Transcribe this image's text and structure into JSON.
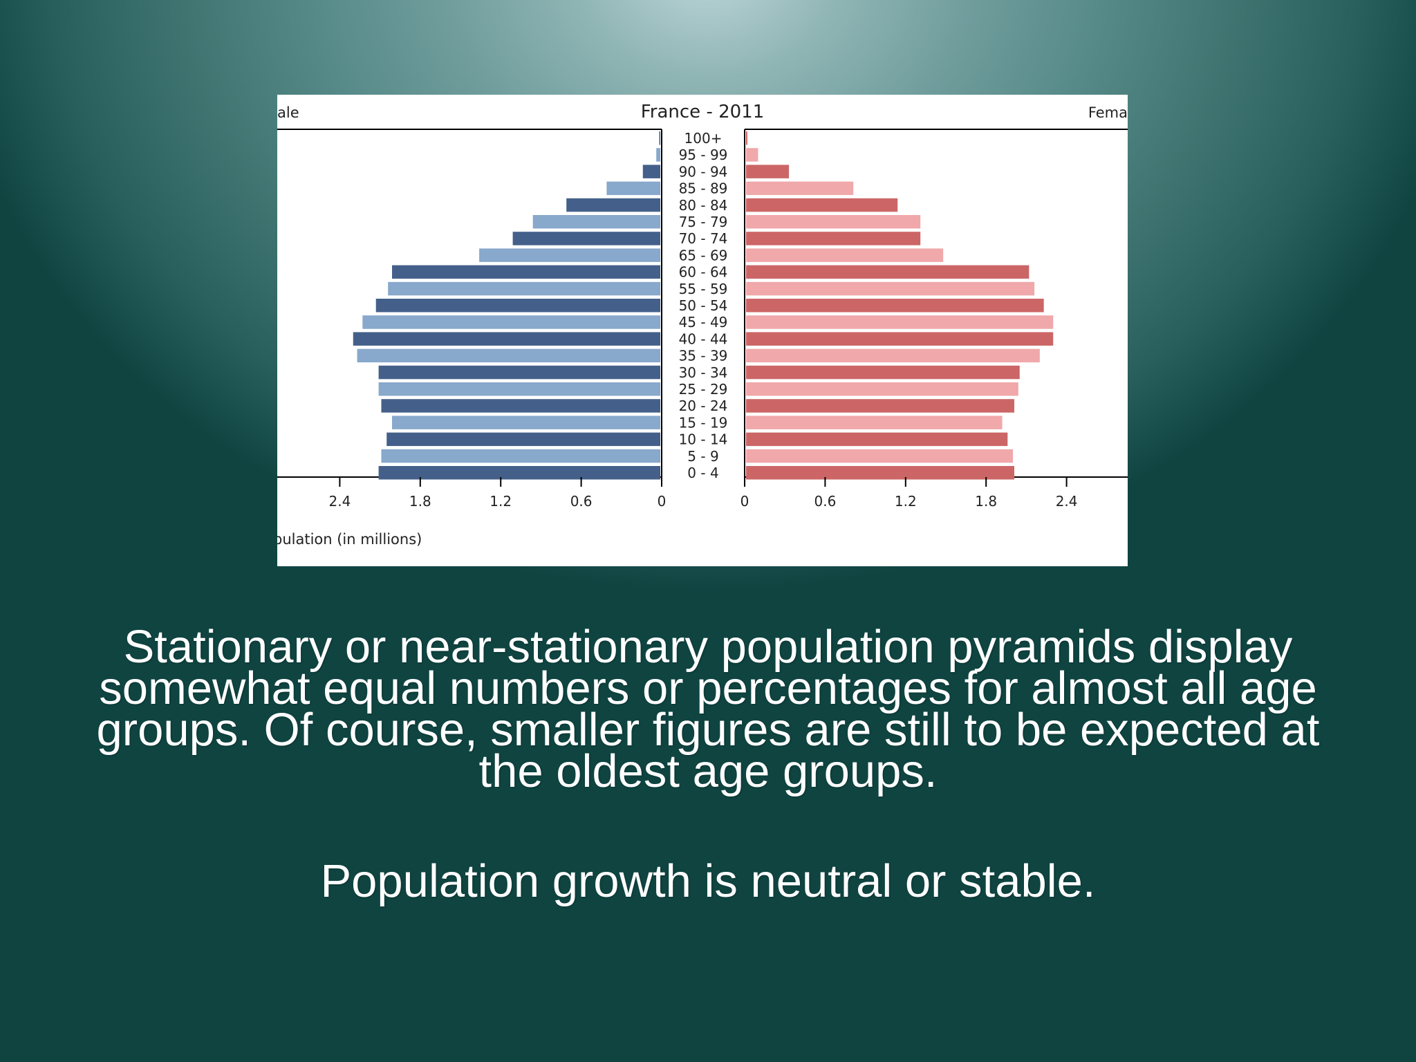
{
  "caption": {
    "paragraph": "Stationary or near-stationary population pyramids display somewhat equal numbers or percentages for almost all age groups. Of course, smaller figures are still to be expected at the oldest age groups.",
    "lines": [
      "Stationary or near-stationary population pyramids display",
      "somewhat equal numbers or percentages for almost all age",
      "groups. Of course, smaller figures are still to be expected at",
      "the oldest age groups."
    ],
    "conclusion": "Population growth is neutral or stable."
  },
  "chart_data": {
    "type": "bar",
    "orientation": "horizontal-pyramid",
    "title": "France - 2011",
    "left_label": "ale",
    "right_label": "Fema",
    "xlabel": "pulation (in millions)",
    "x_ticks": [
      "2.4",
      "1.8",
      "1.2",
      "0.6",
      "0"
    ],
    "x_ticks_right": [
      "0",
      "0.6",
      "1.2",
      "1.8",
      "2.4"
    ],
    "xlim": [
      0,
      2.85
    ],
    "categories": [
      "100+",
      "95 - 99",
      "90 - 94",
      "85 - 89",
      "80 - 84",
      "75 - 79",
      "70 - 74",
      "65 - 69",
      "60 - 64",
      "55 - 59",
      "50 - 54",
      "45 - 49",
      "40 - 44",
      "35 - 39",
      "30 - 34",
      "25 - 29",
      "20 - 24",
      "15 - 19",
      "10 - 14",
      "5 - 9",
      "0 - 4"
    ],
    "series": [
      {
        "name": "Male",
        "values": [
          0.005,
          0.03,
          0.13,
          0.4,
          0.7,
          0.95,
          1.1,
          1.35,
          2.0,
          2.03,
          2.12,
          2.22,
          2.29,
          2.26,
          2.1,
          2.1,
          2.08,
          2.0,
          2.04,
          2.08,
          2.1
        ]
      },
      {
        "name": "Female",
        "values": [
          0.01,
          0.09,
          0.32,
          0.8,
          1.13,
          1.3,
          1.3,
          1.47,
          2.11,
          2.15,
          2.22,
          2.29,
          2.29,
          2.19,
          2.04,
          2.03,
          2.0,
          1.91,
          1.95,
          1.99,
          2.0
        ]
      }
    ],
    "colors": {
      "male_dark": "#44608a",
      "male_light": "#88a8cc",
      "female_dark": "#cc6666",
      "female_light": "#f0a8aa"
    },
    "grid": false,
    "legend": "none"
  }
}
